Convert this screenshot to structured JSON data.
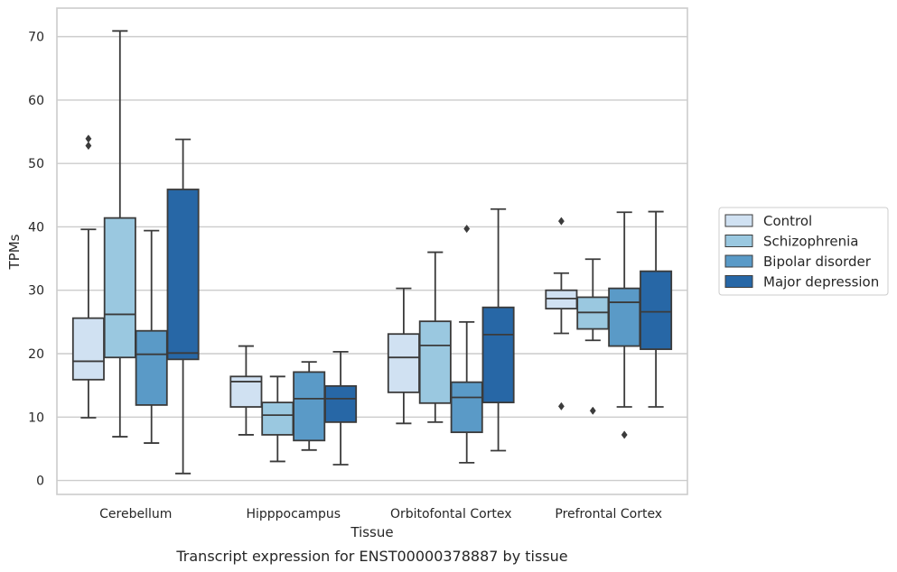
{
  "caption": "Transcript expression for ENST00000378887 by tissue",
  "chart_data": {
    "type": "boxplot",
    "title": "",
    "xlabel": "Tissue",
    "ylabel": "TPMs",
    "ylim": [
      -2.2,
      74.5
    ],
    "yticks": [
      "0",
      "10",
      "20",
      "30",
      "40",
      "50",
      "60",
      "70"
    ],
    "grid": "horizontal",
    "legend_position": "right",
    "categories": [
      "Cerebellum",
      "Hipppocampus",
      "Orbitofontal Cortex",
      "Prefrontal Cortex"
    ],
    "series": [
      {
        "name": "Control",
        "color": "#d0e1f2",
        "boxes": [
          {
            "low": 9.9,
            "q1": 15.9,
            "median": 18.8,
            "q3": 25.6,
            "high": 39.6,
            "outliers": [
              52.8,
              53.9
            ]
          },
          {
            "low": 7.2,
            "q1": 11.6,
            "median": 15.6,
            "q3": 16.4,
            "high": 21.2,
            "outliers": []
          },
          {
            "low": 9.0,
            "q1": 13.9,
            "median": 19.4,
            "q3": 23.1,
            "high": 30.3,
            "outliers": []
          },
          {
            "low": 23.2,
            "q1": 27.1,
            "median": 28.7,
            "q3": 30.0,
            "high": 32.7,
            "outliers": [
              11.7,
              40.9
            ]
          }
        ]
      },
      {
        "name": "Schizophrenia",
        "color": "#9ac8e0",
        "boxes": [
          {
            "low": 6.9,
            "q1": 19.4,
            "median": 26.2,
            "q3": 41.4,
            "high": 70.9,
            "outliers": []
          },
          {
            "low": 3.0,
            "q1": 7.2,
            "median": 10.3,
            "q3": 12.3,
            "high": 16.4,
            "outliers": []
          },
          {
            "low": 9.2,
            "q1": 12.2,
            "median": 21.3,
            "q3": 25.1,
            "high": 36.0,
            "outliers": []
          },
          {
            "low": 22.1,
            "q1": 23.9,
            "median": 26.5,
            "q3": 28.9,
            "high": 34.9,
            "outliers": [
              11.0
            ]
          }
        ]
      },
      {
        "name": "Bipolar disorder",
        "color": "#5a9ac7",
        "boxes": [
          {
            "low": 5.9,
            "q1": 11.9,
            "median": 19.9,
            "q3": 23.6,
            "high": 39.4,
            "outliers": []
          },
          {
            "low": 4.8,
            "q1": 6.3,
            "median": 12.9,
            "q3": 17.1,
            "high": 18.7,
            "outliers": []
          },
          {
            "low": 2.8,
            "q1": 7.6,
            "median": 13.1,
            "q3": 15.5,
            "high": 25.0,
            "outliers": [
              39.7
            ]
          },
          {
            "low": 11.6,
            "q1": 21.2,
            "median": 28.1,
            "q3": 30.3,
            "high": 42.3,
            "outliers": [
              7.2
            ]
          }
        ]
      },
      {
        "name": "Major depression",
        "color": "#2767a6",
        "boxes": [
          {
            "low": 1.1,
            "q1": 19.1,
            "median": 20.1,
            "q3": 45.9,
            "high": 53.8,
            "outliers": []
          },
          {
            "low": 2.5,
            "q1": 9.2,
            "median": 12.9,
            "q3": 14.9,
            "high": 20.3,
            "outliers": []
          },
          {
            "low": 4.7,
            "q1": 12.3,
            "median": 23.0,
            "q3": 27.3,
            "high": 42.8,
            "outliers": []
          },
          {
            "low": 11.6,
            "q1": 20.7,
            "median": 26.6,
            "q3": 33.0,
            "high": 42.4,
            "outliers": []
          }
        ]
      }
    ]
  }
}
